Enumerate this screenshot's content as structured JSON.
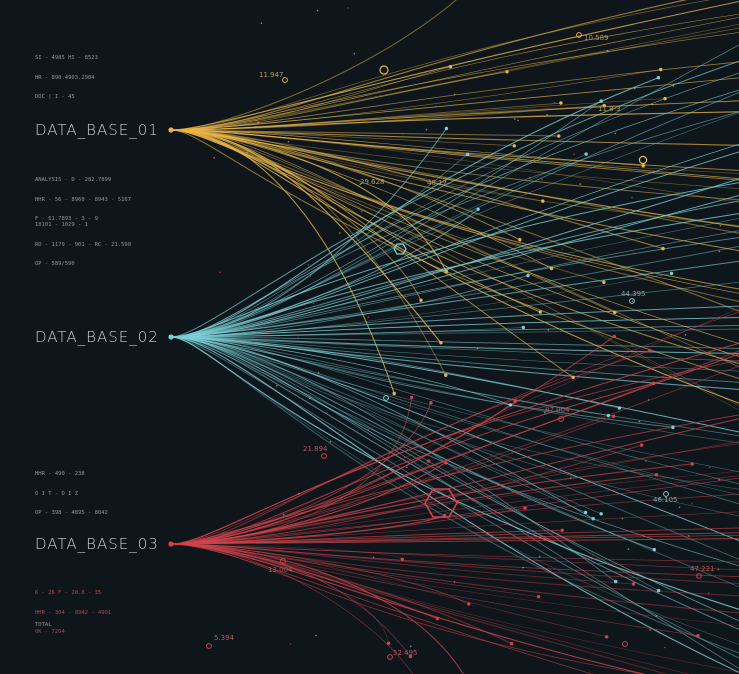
{
  "colors": {
    "background": "#0e161b",
    "yellow": "#e8b547",
    "cyan": "#7ccfd6",
    "red": "#d2434a",
    "label": "#c9d0d3",
    "meta": "#8c979c"
  },
  "nodes": [
    {
      "id": "db1",
      "label": "DATA_BASE_01",
      "color": "yellow"
    },
    {
      "id": "db2",
      "label": "DATA_BASE_02",
      "color": "cyan"
    },
    {
      "id": "db3",
      "label": "DATA_BASE_03",
      "color": "red"
    }
  ],
  "meta": {
    "top": [
      "SI - 4985 HI - 8523",
      "HR - 890.4903.2904",
      "DOC | I - 45"
    ],
    "db1_below": [
      "ANALYSIS - D - 282.7899",
      "HHR - 56 - 8960 - 8943 - 5167",
      "F - 61.7893 - 3 - 9"
    ],
    "db1_lower": [
      "10101 - 1029 - 1",
      "RO - 1179 - 901 - RC - 21.590",
      "OP - 589/590"
    ],
    "db3_above": [
      "HHR - 490 - 238",
      "O I T - D I Z",
      "OP - 398 - 4895 - 8042"
    ],
    "db3_below": [
      "K - 26 F - 28.8 - 35",
      "HHR - 304 - 8942 - 4901",
      "OK - 7204"
    ],
    "total": "TOTAL"
  },
  "values": [
    {
      "text": "11.947",
      "color": "yellow"
    },
    {
      "text": "10.589",
      "color": "yellow"
    },
    {
      "text": "11.8-3",
      "color": "yellow"
    },
    {
      "text": "29.628",
      "color": "yellow"
    },
    {
      "text": "48.17",
      "color": "yellow"
    },
    {
      "text": "44.395",
      "color": "cyan"
    },
    {
      "text": "46.105",
      "color": "cyan"
    },
    {
      "text": "21.894",
      "color": "red"
    },
    {
      "text": "87.004",
      "color": "red"
    },
    {
      "text": "13.004",
      "color": "red"
    },
    {
      "text": "47.221",
      "color": "red"
    },
    {
      "text": "5.394",
      "color": "red"
    },
    {
      "text": "52.495",
      "color": "red"
    }
  ]
}
